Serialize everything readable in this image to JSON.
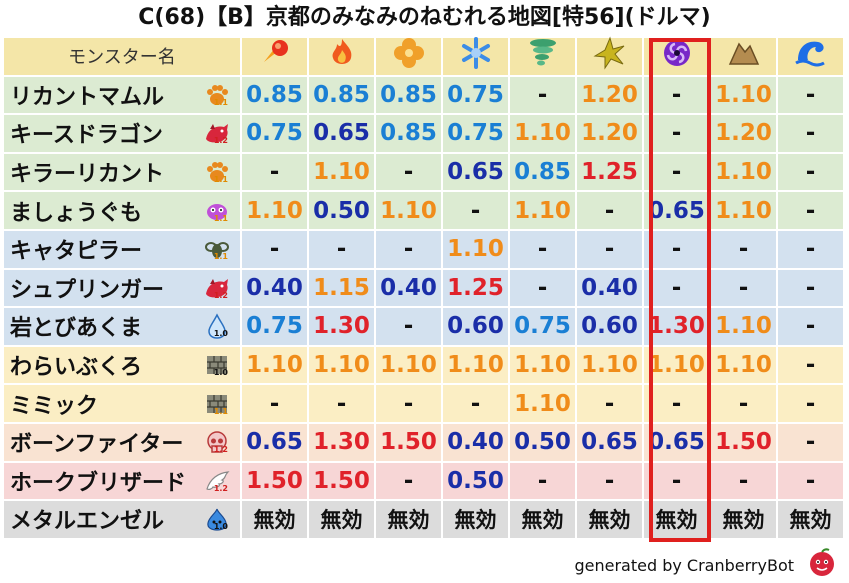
{
  "title": "C(68)【B】京都のみなみのねむれる地図[特56](ドルマ)",
  "header": {
    "name_label": "モンスター名",
    "columns": [
      {
        "icon": "fire-ball-icon",
        "color": "#e8321e"
      },
      {
        "icon": "flame-icon",
        "color": "#f05a1e"
      },
      {
        "icon": "clover-icon",
        "color": "#f0a02a"
      },
      {
        "icon": "snowflake-icon",
        "color": "#3c8ce6"
      },
      {
        "icon": "tornado-icon",
        "color": "#3ca06e"
      },
      {
        "icon": "burst-icon",
        "color": "#c8b41e"
      },
      {
        "icon": "dark-swirl-icon",
        "color": "#7828c8"
      },
      {
        "icon": "rock-icon",
        "color": "#b48c50"
      },
      {
        "icon": "wave-icon",
        "color": "#1e6ee6"
      }
    ]
  },
  "rows": [
    {
      "name": "リカントマムル",
      "icon": "paw-icon",
      "sub": "1.1",
      "bg": "green",
      "values": [
        [
          "0.85",
          "blue"
        ],
        [
          "0.85",
          "blue"
        ],
        [
          "0.85",
          "blue"
        ],
        [
          "0.75",
          "blue"
        ],
        [
          "-",
          "dash"
        ],
        [
          "1.20",
          "orange"
        ],
        [
          "-",
          "dash"
        ],
        [
          "1.10",
          "orange"
        ],
        [
          "-",
          "dash"
        ]
      ]
    },
    {
      "name": "キースドラゴン",
      "icon": "dragon-icon",
      "sub": "1.2",
      "bg": "green",
      "values": [
        [
          "0.75",
          "blue"
        ],
        [
          "0.65",
          "navy"
        ],
        [
          "0.85",
          "blue"
        ],
        [
          "0.75",
          "blue"
        ],
        [
          "1.10",
          "orange"
        ],
        [
          "1.20",
          "orange"
        ],
        [
          "-",
          "dash"
        ],
        [
          "1.20",
          "orange"
        ],
        [
          "-",
          "dash"
        ]
      ]
    },
    {
      "name": "キラーリカント",
      "icon": "paw-icon",
      "sub": "1.1",
      "bg": "green",
      "values": [
        [
          "-",
          "dash"
        ],
        [
          "1.10",
          "orange"
        ],
        [
          "-",
          "dash"
        ],
        [
          "0.65",
          "navy"
        ],
        [
          "0.85",
          "blue"
        ],
        [
          "1.25",
          "red"
        ],
        [
          "-",
          "dash"
        ],
        [
          "1.10",
          "orange"
        ],
        [
          "-",
          "dash"
        ]
      ]
    },
    {
      "name": "ましょうぐも",
      "icon": "bug-icon",
      "sub": "1.1",
      "bg": "green",
      "values": [
        [
          "1.10",
          "orange"
        ],
        [
          "0.50",
          "navy"
        ],
        [
          "1.10",
          "orange"
        ],
        [
          "-",
          "dash"
        ],
        [
          "1.10",
          "orange"
        ],
        [
          "-",
          "dash"
        ],
        [
          "0.65",
          "navy"
        ],
        [
          "1.10",
          "orange"
        ],
        [
          "-",
          "dash"
        ]
      ]
    },
    {
      "name": "キャタピラー",
      "icon": "insect-icon",
      "sub": "1.1",
      "bg": "blue",
      "values": [
        [
          "-",
          "dash"
        ],
        [
          "-",
          "dash"
        ],
        [
          "-",
          "dash"
        ],
        [
          "1.10",
          "orange"
        ],
        [
          "-",
          "dash"
        ],
        [
          "-",
          "dash"
        ],
        [
          "-",
          "dash"
        ],
        [
          "-",
          "dash"
        ],
        [
          "-",
          "dash"
        ]
      ]
    },
    {
      "name": "シュプリンガー",
      "icon": "dragon-icon",
      "sub": "1.2",
      "bg": "blue",
      "values": [
        [
          "0.40",
          "navy"
        ],
        [
          "1.15",
          "orange"
        ],
        [
          "0.40",
          "navy"
        ],
        [
          "1.25",
          "red"
        ],
        [
          "-",
          "dash"
        ],
        [
          "0.40",
          "navy"
        ],
        [
          "-",
          "dash"
        ],
        [
          "-",
          "dash"
        ],
        [
          "-",
          "dash"
        ]
      ]
    },
    {
      "name": "岩とびあくま",
      "icon": "drop-icon",
      "sub": "1.0",
      "bg": "blue",
      "values": [
        [
          "0.75",
          "blue"
        ],
        [
          "1.30",
          "red"
        ],
        [
          "-",
          "dash"
        ],
        [
          "0.60",
          "navy"
        ],
        [
          "0.75",
          "blue"
        ],
        [
          "0.60",
          "navy"
        ],
        [
          "1.30",
          "red"
        ],
        [
          "1.10",
          "orange"
        ],
        [
          "-",
          "dash"
        ]
      ]
    },
    {
      "name": "わらいぶくろ",
      "icon": "brick-icon",
      "sub": "1.0",
      "bg": "yellow",
      "values": [
        [
          "1.10",
          "orange"
        ],
        [
          "1.10",
          "orange"
        ],
        [
          "1.10",
          "orange"
        ],
        [
          "1.10",
          "orange"
        ],
        [
          "1.10",
          "orange"
        ],
        [
          "1.10",
          "orange"
        ],
        [
          "1.10",
          "orange"
        ],
        [
          "1.10",
          "orange"
        ],
        [
          "-",
          "dash"
        ]
      ]
    },
    {
      "name": "ミミック",
      "icon": "brick-icon",
      "sub": "1.1",
      "bg": "yellow",
      "values": [
        [
          "-",
          "dash"
        ],
        [
          "-",
          "dash"
        ],
        [
          "-",
          "dash"
        ],
        [
          "-",
          "dash"
        ],
        [
          "1.10",
          "orange"
        ],
        [
          "-",
          "dash"
        ],
        [
          "-",
          "dash"
        ],
        [
          "-",
          "dash"
        ],
        [
          "-",
          "dash"
        ]
      ]
    },
    {
      "name": "ボーンファイター",
      "icon": "skull-icon",
      "sub": "1.2",
      "bg": "peach",
      "values": [
        [
          "0.65",
          "navy"
        ],
        [
          "1.30",
          "red"
        ],
        [
          "1.50",
          "red"
        ],
        [
          "0.40",
          "navy"
        ],
        [
          "0.50",
          "navy"
        ],
        [
          "0.65",
          "navy"
        ],
        [
          "0.65",
          "navy"
        ],
        [
          "1.50",
          "red"
        ],
        [
          "-",
          "dash"
        ]
      ]
    },
    {
      "name": "ホークブリザード",
      "icon": "wing-icon",
      "sub": "1.2",
      "bg": "pink",
      "values": [
        [
          "1.50",
          "red"
        ],
        [
          "1.50",
          "red"
        ],
        [
          "-",
          "dash"
        ],
        [
          "0.50",
          "navy"
        ],
        [
          "-",
          "dash"
        ],
        [
          "-",
          "dash"
        ],
        [
          "-",
          "dash"
        ],
        [
          "-",
          "dash"
        ],
        [
          "-",
          "dash"
        ]
      ]
    },
    {
      "name": "メタルエンゼル",
      "icon": "slime-icon",
      "sub": "1.0",
      "bg": "gray",
      "values": [
        [
          "無効",
          "black"
        ],
        [
          "無効",
          "black"
        ],
        [
          "無効",
          "black"
        ],
        [
          "無効",
          "black"
        ],
        [
          "無効",
          "black"
        ],
        [
          "無効",
          "black"
        ],
        [
          "無効",
          "black"
        ],
        [
          "無効",
          "black"
        ],
        [
          "無効",
          "black"
        ]
      ]
    }
  ],
  "footer": "generated by CranberryBot",
  "colors": {
    "highlight": "#e0201e"
  }
}
